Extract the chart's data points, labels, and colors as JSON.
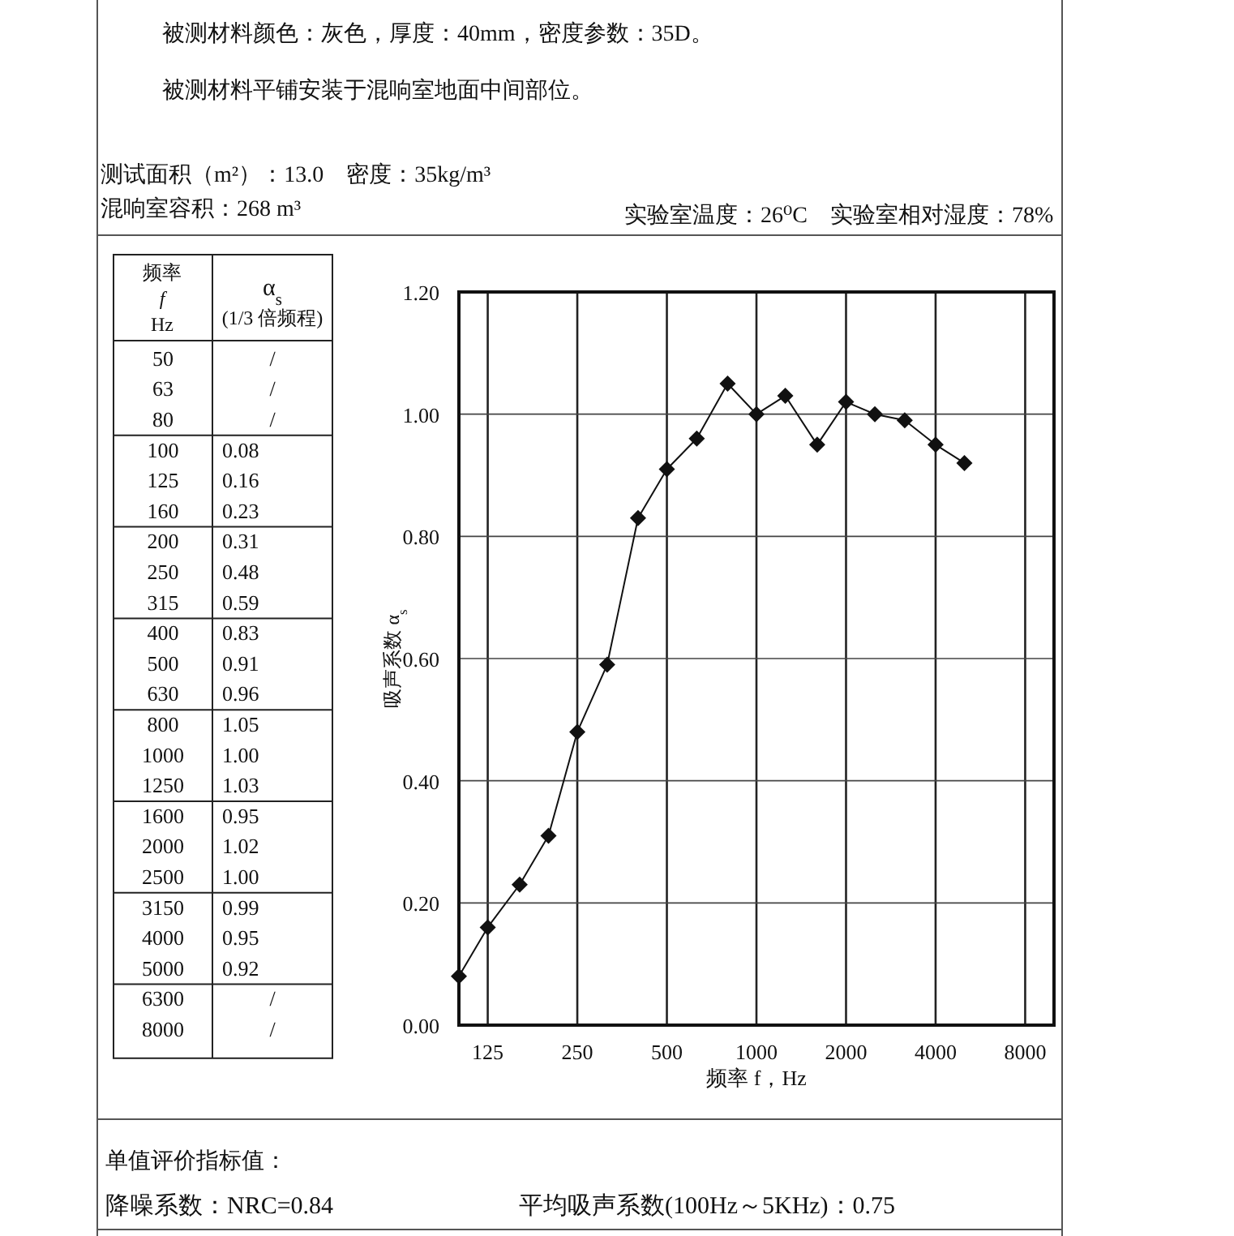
{
  "chart_data": [
    {
      "type": "other",
      "annotations": [
        "频率",
        "f",
        "Hz",
        "α$_{s}$",
        "(1/3 倍频程)"
      ],
      "categories": [
        "50",
        "63",
        "80",
        "100",
        "125",
        "160",
        "200",
        "250",
        "315",
        "400",
        "500",
        "630",
        "800",
        "1000",
        "1250",
        "1600",
        "2000",
        "2500",
        "3150",
        "4000",
        "5000",
        "6300",
        "8000"
      ],
      "value_labels": [
        "/",
        "/",
        "/",
        "0.08",
        "0.16",
        "0.23",
        "0.31",
        "0.48",
        "0.59",
        "0.83",
        "0.91",
        "0.96",
        "1.05",
        "1.00",
        "1.03",
        "0.95",
        "1.02",
        "1.00",
        "0.99",
        "0.95",
        "0.92",
        "/",
        "/"
      ]
    },
    {
      "type": "line",
      "x": [
        100,
        125,
        160,
        200,
        250,
        315,
        400,
        500,
        630,
        800,
        1000,
        1250,
        1600,
        2000,
        2500,
        3150,
        4000,
        5000
      ],
      "series": [
        {
          "color": "#111111",
          "values": [
            0.08,
            0.16,
            0.23,
            0.31,
            0.48,
            0.59,
            0.83,
            0.91,
            0.96,
            1.05,
            1.0,
            1.03,
            0.95,
            1.02,
            1.0,
            0.99,
            0.95,
            0.92
          ]
        }
      ],
      "xlabel": "频率 f，Hz",
      "ylabel": "吸声系数 α$_{s}$",
      "log": "x",
      "xlim": [
        100,
        10000
      ],
      "xticks": [
        125,
        250,
        500,
        1000,
        2000,
        4000,
        8000
      ],
      "ylim": [
        0,
        1.2
      ],
      "yticks": [
        {
          "value": 0,
          "label": "0.00"
        },
        {
          "value": 0.2,
          "label": "0.20"
        },
        {
          "value": 0.4,
          "label": "0.40"
        },
        {
          "value": 0.6,
          "label": "0.60"
        },
        {
          "value": 0.8,
          "label": "0.80"
        },
        {
          "value": 1.0,
          "label": "1.00"
        },
        {
          "value": 1.2,
          "label": "1.20"
        }
      ],
      "grid": true,
      "marker": "diamond",
      "line_style": "solid",
      "annotations": [
        "被测材料颜色：灰色，厚度：40mm，密度参数：35D。",
        "被测材料平铺安装于混响室地面中间部位。",
        "测试面积（m²）：13.0　密度：35kg/m³",
        "混响室容积：268 m³",
        "实验室温度：26⁰C　实验室相对湿度：78%",
        "单值评价指标值：",
        "降噪系数：NRC=0.84",
        "平均吸声系数(100Hz～5KHz)：0.75"
      ]
    }
  ]
}
